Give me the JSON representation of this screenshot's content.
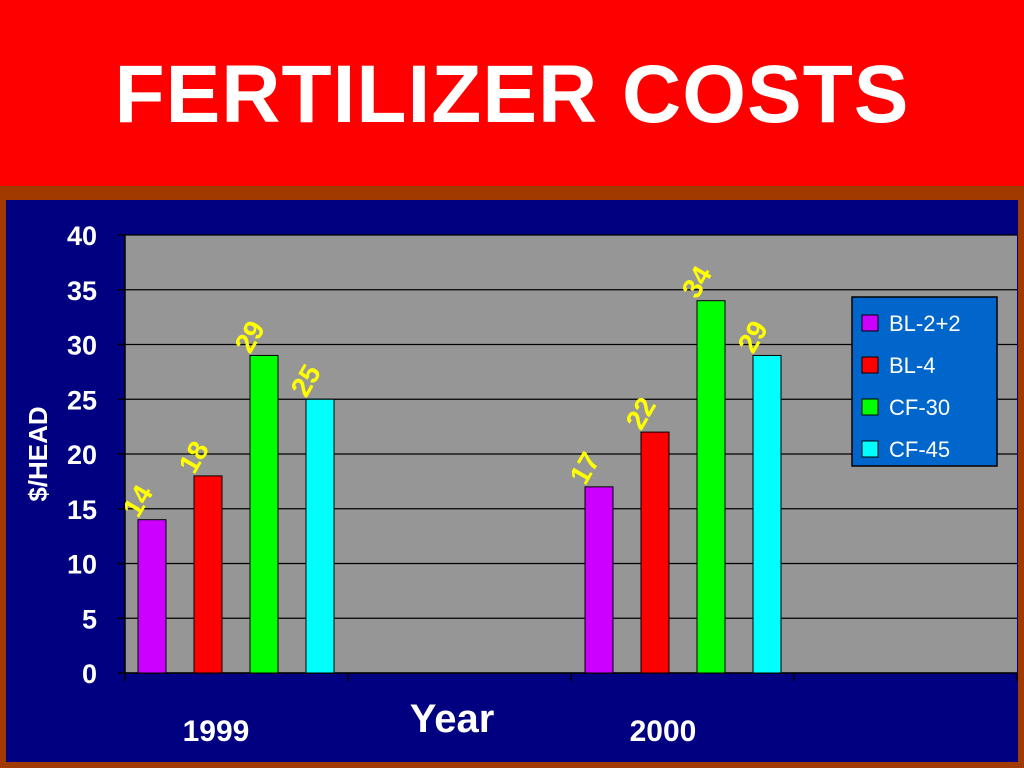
{
  "slide": {
    "title": "FERTILIZER COSTS"
  },
  "colors": {
    "background": "#ff0000",
    "chart_frame": "#a03a00",
    "chart_panel": "#000080",
    "plot_area": "#969696",
    "legend_bg": "#0066cc",
    "data_label": "#ffff00"
  },
  "chart_data": {
    "type": "bar",
    "categories": [
      "1999",
      "2000"
    ],
    "series": [
      {
        "name": "BL-2+2",
        "color": "#cc00ff",
        "values": [
          14,
          17
        ]
      },
      {
        "name": "BL-4",
        "color": "#ff0000",
        "values": [
          18,
          22
        ]
      },
      {
        "name": "CF-30",
        "color": "#00ff00",
        "values": [
          29,
          34
        ]
      },
      {
        "name": "CF-45",
        "color": "#00ffff",
        "values": [
          25,
          29
        ]
      }
    ],
    "xlabel": "Year",
    "ylabel": "$/HEAD",
    "ylim": [
      0,
      40
    ],
    "yticks": [
      0,
      5,
      10,
      15,
      20,
      25,
      30,
      35,
      40
    ],
    "grid": true,
    "legend": "right",
    "data_labels": true
  }
}
